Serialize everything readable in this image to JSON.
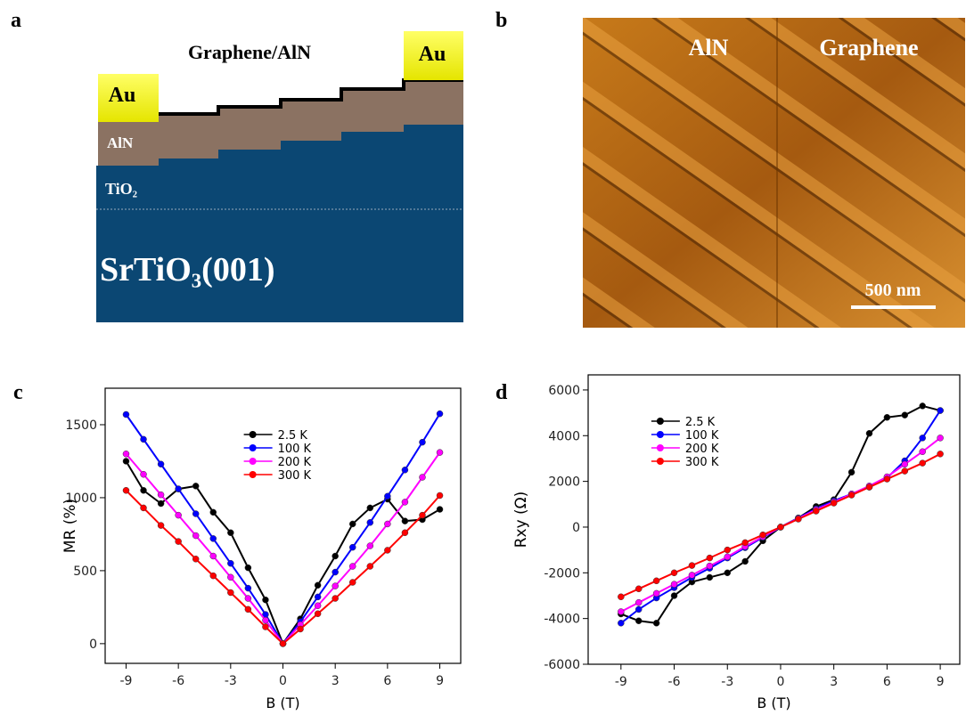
{
  "panels": {
    "a": {
      "label": "a",
      "title": "Graphene/AlN",
      "electrodes": [
        "Au",
        "Au"
      ],
      "layers": [
        "AlN",
        "TiO₂",
        "SrTiO₃(001)"
      ]
    },
    "b": {
      "label": "b",
      "regions": [
        "AlN",
        "Graphene"
      ],
      "scale_bar": "500 nm"
    }
  },
  "chart_data": [
    {
      "type": "line",
      "panel_label": "c",
      "xlabel": "B (T)",
      "ylabel": "MR (%)",
      "x": [
        -9,
        -8,
        -7,
        -6,
        -5,
        -4,
        -3,
        -2,
        -1,
        0,
        1,
        2,
        3,
        4,
        5,
        6,
        7,
        8,
        9
      ],
      "xlim": [
        -10.2,
        10.2
      ],
      "xticks": [
        -9,
        -6,
        -3,
        0,
        3,
        6,
        9
      ],
      "ylim": [
        -135,
        1750
      ],
      "yticks": [
        0,
        500,
        1000,
        1500
      ],
      "legend": "upper center",
      "series": [
        {
          "name": "2.5 K",
          "color": "#000000",
          "values": [
            1250,
            1050,
            960,
            1060,
            1080,
            900,
            760,
            520,
            300,
            0,
            170,
            400,
            600,
            820,
            930,
            990,
            840,
            850,
            920
          ]
        },
        {
          "name": "100 K",
          "color": "#0000ff",
          "values": [
            1570,
            1400,
            1230,
            1060,
            890,
            720,
            550,
            380,
            200,
            0,
            150,
            320,
            490,
            660,
            830,
            1010,
            1190,
            1380,
            1575
          ]
        },
        {
          "name": "200 K",
          "color": "#ff00ff",
          "values": [
            1300,
            1160,
            1020,
            880,
            740,
            600,
            455,
            310,
            160,
            0,
            130,
            260,
            395,
            530,
            670,
            820,
            970,
            1140,
            1310
          ]
        },
        {
          "name": "300 K",
          "color": "#ff0000",
          "values": [
            1050,
            930,
            810,
            700,
            580,
            465,
            350,
            235,
            115,
            0,
            100,
            205,
            310,
            420,
            530,
            640,
            760,
            880,
            1015
          ]
        }
      ]
    },
    {
      "type": "line",
      "panel_label": "d",
      "xlabel": "B (T)",
      "ylabel": "Rxy (Ω)",
      "x": [
        -9,
        -8,
        -7,
        -6,
        -5,
        -4,
        -3,
        -2,
        -1,
        0,
        1,
        2,
        3,
        4,
        5,
        6,
        7,
        8,
        9
      ],
      "xlim": [
        -10.85,
        10.1
      ],
      "xticks": [
        -9,
        -6,
        -3,
        0,
        3,
        6,
        9
      ],
      "ylim": [
        -6000,
        6660
      ],
      "yticks": [
        -6000,
        -4000,
        -2000,
        0,
        2000,
        4000,
        6000
      ],
      "legend": "upper left",
      "series": [
        {
          "name": "2.5 K",
          "color": "#000000",
          "values": [
            -3800,
            -4100,
            -4200,
            -3000,
            -2400,
            -2200,
            -2000,
            -1500,
            -600,
            0,
            400,
            900,
            1200,
            2400,
            4100,
            4800,
            4900,
            5300,
            5100
          ]
        },
        {
          "name": "100 K",
          "color": "#0000ff",
          "values": [
            -4200,
            -3600,
            -3100,
            -2650,
            -2200,
            -1800,
            -1350,
            -900,
            -450,
            0,
            400,
            800,
            1150,
            1450,
            1750,
            2150,
            2900,
            3900,
            5100
          ]
        },
        {
          "name": "200 K",
          "color": "#ff00ff",
          "values": [
            -3700,
            -3300,
            -2900,
            -2500,
            -2100,
            -1700,
            -1300,
            -850,
            -420,
            0,
            380,
            760,
            1100,
            1450,
            1800,
            2200,
            2750,
            3300,
            3900
          ]
        },
        {
          "name": "300 K",
          "color": "#ff0000",
          "values": [
            -3050,
            -2700,
            -2350,
            -2000,
            -1680,
            -1350,
            -1000,
            -680,
            -340,
            0,
            350,
            700,
            1050,
            1400,
            1750,
            2100,
            2450,
            2800,
            3200
          ]
        }
      ]
    }
  ]
}
